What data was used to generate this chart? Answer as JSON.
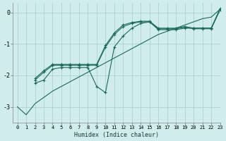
{
  "background_color": "#d0ecec",
  "grid_color": "#a8cccc",
  "line_color": "#1a6b5a",
  "xlabel": "Humidex (Indice chaleur)",
  "xlim": [
    -0.5,
    23
  ],
  "ylim": [
    -3.5,
    0.3
  ],
  "yticks": [
    0,
    -1,
    -2,
    -3
  ],
  "xticks": [
    0,
    1,
    2,
    3,
    4,
    5,
    6,
    7,
    8,
    9,
    10,
    11,
    12,
    13,
    14,
    15,
    16,
    17,
    18,
    19,
    20,
    21,
    22,
    23
  ],
  "series": [
    {
      "x": [
        0,
        1,
        2,
        3,
        4,
        5,
        6,
        7,
        8,
        9,
        10,
        11,
        12,
        13,
        14,
        15,
        16,
        17,
        18,
        19,
        20,
        21,
        22,
        23
      ],
      "y": [
        -3.0,
        -3.25,
        -2.9,
        -2.7,
        -2.5,
        -2.35,
        -2.2,
        -2.05,
        -1.9,
        -1.75,
        -1.6,
        -1.45,
        -1.3,
        -1.15,
        -1.0,
        -0.85,
        -0.7,
        -0.6,
        -0.5,
        -0.4,
        -0.3,
        -0.2,
        -0.15,
        0.1
      ],
      "marker": false
    },
    {
      "x": [
        2,
        3,
        4,
        5,
        6,
        7,
        8,
        9,
        10,
        11,
        12,
        13,
        14,
        15,
        16,
        17,
        18,
        19,
        20,
        21,
        22,
        23
      ],
      "y": [
        -2.25,
        -2.15,
        -1.8,
        -1.75,
        -1.75,
        -1.75,
        -1.75,
        -2.35,
        -2.55,
        -1.1,
        -0.75,
        -0.5,
        -0.35,
        -0.3,
        -0.55,
        -0.55,
        -0.55,
        -0.5,
        -0.5,
        -0.5,
        -0.5,
        0.12
      ],
      "marker": true
    },
    {
      "x": [
        2,
        3,
        4,
        5,
        6,
        7,
        8,
        9,
        10,
        11,
        12,
        13,
        14,
        15,
        16,
        17,
        18,
        19,
        20,
        21,
        22,
        23
      ],
      "y": [
        -2.1,
        -1.85,
        -1.65,
        -1.65,
        -1.65,
        -1.65,
        -1.65,
        -1.65,
        -1.05,
        -0.65,
        -0.4,
        -0.32,
        -0.28,
        -0.28,
        -0.5,
        -0.5,
        -0.5,
        -0.45,
        -0.5,
        -0.5,
        -0.5,
        0.1
      ],
      "marker": true
    },
    {
      "x": [
        2,
        3,
        4,
        5,
        6,
        7,
        8,
        9,
        10,
        11,
        12,
        13,
        14,
        15,
        16,
        17,
        18,
        19,
        20,
        21,
        22,
        23
      ],
      "y": [
        -2.15,
        -1.9,
        -1.68,
        -1.68,
        -1.68,
        -1.68,
        -1.68,
        -1.68,
        -1.1,
        -0.7,
        -0.45,
        -0.35,
        -0.3,
        -0.3,
        -0.52,
        -0.52,
        -0.52,
        -0.47,
        -0.52,
        -0.52,
        -0.52,
        0.08
      ],
      "marker": true
    }
  ]
}
